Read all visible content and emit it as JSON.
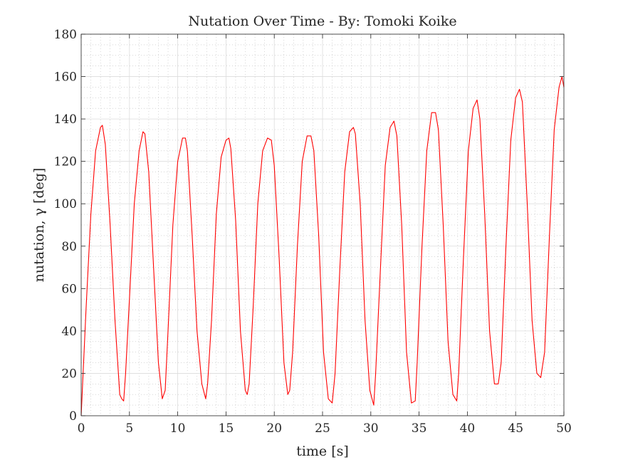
{
  "chart_data": {
    "type": "line",
    "title": "Nutation Over Time - By: Tomoki Koike",
    "xlabel": "time [s]",
    "ylabel": "nutation, γ [deg]",
    "xlim": [
      0,
      50
    ],
    "ylim": [
      0,
      180
    ],
    "xticks": [
      0,
      5,
      10,
      15,
      20,
      25,
      30,
      35,
      40,
      45,
      50
    ],
    "yticks": [
      0,
      20,
      40,
      60,
      80,
      100,
      120,
      140,
      160,
      180
    ],
    "grid": true,
    "minor_grid": true,
    "series": [
      {
        "color": "#ff0000",
        "x": [
          0,
          0.5,
          1,
          1.5,
          2,
          2.2,
          2.5,
          3,
          3.5,
          4,
          4.2,
          4.4,
          4.6,
          5,
          5.5,
          6,
          6.4,
          6.6,
          7,
          7.5,
          8,
          8.4,
          8.7,
          9,
          9.5,
          10,
          10.5,
          10.8,
          11,
          11.5,
          12,
          12.5,
          12.9,
          13.1,
          13.5,
          14,
          14.5,
          15,
          15.3,
          15.5,
          16,
          16.5,
          17,
          17.2,
          17.4,
          17.8,
          18.3,
          18.8,
          19.3,
          19.7,
          20,
          20.5,
          21,
          21.4,
          21.6,
          21.9,
          22.4,
          22.9,
          23.4,
          23.8,
          24.1,
          24.6,
          25.1,
          25.6,
          26,
          26.3,
          26.8,
          27.3,
          27.8,
          28.2,
          28.4,
          28.9,
          29.4,
          29.9,
          30.3,
          30.5,
          31,
          31.5,
          32,
          32.4,
          32.7,
          33.2,
          33.7,
          34.2,
          34.6,
          34.8,
          35.3,
          35.8,
          36.3,
          36.7,
          37,
          37.5,
          38,
          38.5,
          38.9,
          39.1,
          39.6,
          40.1,
          40.6,
          41,
          41.3,
          41.8,
          42.3,
          42.8,
          43.2,
          43.5,
          44,
          44.5,
          45,
          45.4,
          45.7,
          46.2,
          46.7,
          47.2,
          47.6,
          48,
          48.5,
          49,
          49.5,
          49.8,
          50
        ],
        "y": [
          0,
          50,
          95,
          125,
          136,
          137,
          128,
          90,
          45,
          10,
          8,
          7,
          20,
          55,
          100,
          125,
          134,
          133,
          115,
          70,
          25,
          8,
          12,
          40,
          90,
          120,
          131,
          131,
          125,
          85,
          40,
          15,
          8,
          15,
          45,
          95,
          122,
          130,
          131,
          126,
          92,
          40,
          12,
          10,
          15,
          50,
          100,
          125,
          131,
          130,
          118,
          75,
          25,
          10,
          12,
          30,
          80,
          120,
          132,
          132,
          125,
          85,
          30,
          8,
          6,
          20,
          70,
          115,
          134,
          136,
          133,
          100,
          45,
          12,
          5,
          20,
          70,
          118,
          136,
          139,
          132,
          90,
          30,
          6,
          7,
          25,
          80,
          125,
          143,
          143,
          135,
          90,
          35,
          10,
          7,
          20,
          75,
          125,
          145,
          149,
          140,
          95,
          40,
          15,
          15,
          25,
          80,
          130,
          150,
          154,
          148,
          100,
          45,
          20,
          18,
          30,
          85,
          135,
          155,
          160,
          155
        ]
      }
    ]
  }
}
